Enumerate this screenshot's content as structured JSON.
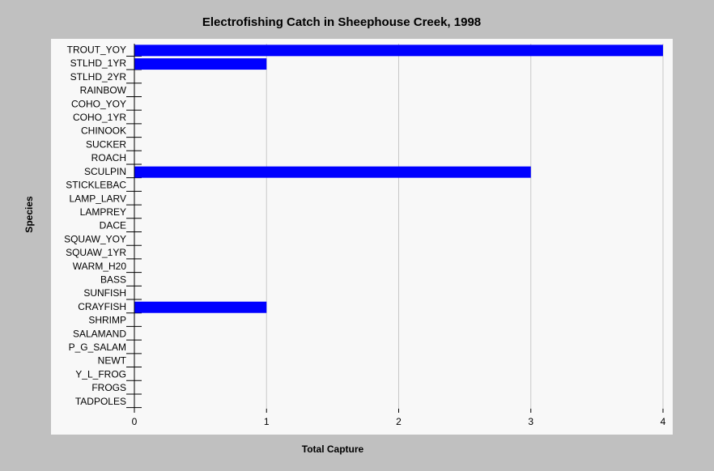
{
  "chart_data": {
    "type": "bar",
    "orientation": "horizontal",
    "title": "Electrofishing Catch in Sheephouse Creek, 1998",
    "x_label": "Total Capture",
    "y_label": "Species",
    "categories": [
      "TROUT_YOY",
      "STLHD_1YR",
      "STLHD_2YR",
      "RAINBOW",
      "COHO_YOY",
      "COHO_1YR",
      "CHINOOK",
      "SUCKER",
      "ROACH",
      "SCULPIN",
      "STICKLEBAC",
      "LAMP_LARV",
      "LAMPREY",
      "DACE",
      "SQUAW_YOY",
      "SQUAW_1YR",
      "WARM_H20",
      "BASS",
      "SUNFISH",
      "CRAYFISH",
      "SHRIMP",
      "SALAMAND",
      "P_G_SALAM",
      "NEWT",
      "Y_L_FROG",
      "FROGS",
      "TADPOLES"
    ],
    "values": [
      4,
      1,
      0,
      0,
      0,
      0,
      0,
      0,
      0,
      3,
      0,
      0,
      0,
      0,
      0,
      0,
      0,
      0,
      0,
      1,
      0,
      0,
      0,
      0,
      0,
      0,
      0
    ],
    "color": "#0000ff",
    "xlim": [
      0,
      4
    ],
    "xticks": [
      0,
      1,
      2,
      3,
      4
    ],
    "grid": true
  }
}
